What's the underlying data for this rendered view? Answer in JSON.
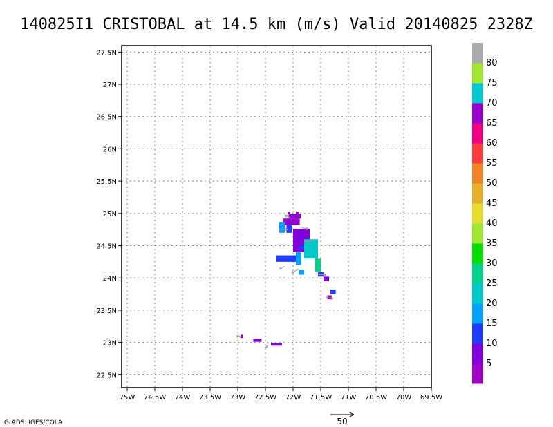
{
  "title": "140825I1 CRISTOBAL at 14.5 km (m/s) Valid 20140825 2328Z",
  "credit": "GrADS: IGES/COLA",
  "vector_scale": {
    "label": "50",
    "value": 50
  },
  "colors": {
    "frame": "#000000",
    "grid": "#888888",
    "vector": "#9a9a9a",
    "colorbar": [
      "#a000c8",
      "#8200dc",
      "#1e3cff",
      "#00a0ff",
      "#00c8c8",
      "#00d28c",
      "#00dc00",
      "#a0e632",
      "#e6dc32",
      "#e6af2d",
      "#f08228",
      "#fa3c3c",
      "#f00082",
      "#9600c8",
      "#00c8d2",
      "#a0e632",
      "#aaaaaa"
    ]
  },
  "chart_data": {
    "type": "heatmap",
    "title": "140825I1 CRISTOBAL at 14.5 km (m/s) Valid 20140825 2328Z",
    "xlabel": "",
    "ylabel": "",
    "xlim": [
      -75.1,
      -69.5
    ],
    "ylim": [
      22.3,
      27.6
    ],
    "grid": true,
    "x_ticks": [
      "75W",
      "74.5W",
      "74W",
      "73.5W",
      "73W",
      "72.5W",
      "72W",
      "71.5W",
      "71W",
      "70.5W",
      "70W",
      "69.5W"
    ],
    "y_ticks": [
      "22.5N",
      "23N",
      "23.5N",
      "24N",
      "24.5N",
      "25N",
      "25.5N",
      "26N",
      "26.5N",
      "27N",
      "27.5N"
    ],
    "colorbar": {
      "labels": [
        "5",
        "10",
        "15",
        "20",
        "25",
        "30",
        "35",
        "40",
        "45",
        "50",
        "55",
        "60",
        "65",
        "70",
        "75",
        "80"
      ],
      "placement": "right"
    },
    "cells": [
      {
        "lon": -72.1,
        "lat": 24.99,
        "w": 0.05,
        "h": 0.03,
        "color": "#a000c8"
      },
      {
        "lon": -71.95,
        "lat": 24.99,
        "w": 0.05,
        "h": 0.03,
        "color": "#a000c8"
      },
      {
        "lon": -72.08,
        "lat": 24.92,
        "w": 0.22,
        "h": 0.07,
        "color": "#9000d0"
      },
      {
        "lon": -72.18,
        "lat": 24.82,
        "w": 0.3,
        "h": 0.1,
        "color": "#9000d0"
      },
      {
        "lon": -72.25,
        "lat": 24.7,
        "w": 0.1,
        "h": 0.16,
        "color": "#00a0ff"
      },
      {
        "lon": -72.12,
        "lat": 24.7,
        "w": 0.1,
        "h": 0.12,
        "color": "#1e3cff"
      },
      {
        "lon": -72.0,
        "lat": 24.58,
        "w": 0.3,
        "h": 0.18,
        "color": "#8200dc"
      },
      {
        "lon": -72.0,
        "lat": 24.4,
        "w": 0.3,
        "h": 0.2,
        "color": "#8200dc"
      },
      {
        "lon": -71.9,
        "lat": 24.45,
        "w": 0.2,
        "h": 0.05,
        "color": "#1e3cff"
      },
      {
        "lon": -72.3,
        "lat": 24.25,
        "w": 0.35,
        "h": 0.1,
        "color": "#1e3cff"
      },
      {
        "lon": -71.95,
        "lat": 24.2,
        "w": 0.1,
        "h": 0.2,
        "color": "#00a0ff"
      },
      {
        "lon": -71.8,
        "lat": 24.3,
        "w": 0.25,
        "h": 0.3,
        "color": "#00c8c8"
      },
      {
        "lon": -71.6,
        "lat": 24.1,
        "w": 0.1,
        "h": 0.2,
        "color": "#00d28c"
      },
      {
        "lon": -71.9,
        "lat": 24.05,
        "w": 0.1,
        "h": 0.07,
        "color": "#00a0ff"
      },
      {
        "lon": -71.55,
        "lat": 24.02,
        "w": 0.1,
        "h": 0.07,
        "color": "#1e3cff"
      },
      {
        "lon": -71.45,
        "lat": 23.95,
        "w": 0.1,
        "h": 0.07,
        "color": "#8200dc"
      },
      {
        "lon": -71.33,
        "lat": 23.75,
        "w": 0.1,
        "h": 0.07,
        "color": "#1e3cff"
      },
      {
        "lon": -71.38,
        "lat": 23.67,
        "w": 0.08,
        "h": 0.06,
        "color": "#a000c8"
      },
      {
        "lon": -72.95,
        "lat": 23.07,
        "w": 0.05,
        "h": 0.05,
        "color": "#a000c8"
      },
      {
        "lon": -72.72,
        "lat": 23.01,
        "w": 0.15,
        "h": 0.05,
        "color": "#8200dc"
      },
      {
        "lon": -72.4,
        "lat": 22.95,
        "w": 0.2,
        "h": 0.04,
        "color": "#8200dc"
      }
    ],
    "vectors": [
      {
        "lon": -72.05,
        "lat": 24.93,
        "u": -4,
        "v": 2
      },
      {
        "lon": -71.85,
        "lat": 24.78,
        "u": 5,
        "v": -1
      },
      {
        "lon": -72.25,
        "lat": 24.75,
        "u": 6,
        "v": 0
      },
      {
        "lon": -71.8,
        "lat": 24.56,
        "u": 6,
        "v": 1
      },
      {
        "lon": -72.15,
        "lat": 24.18,
        "u": -4,
        "v": -2
      },
      {
        "lon": -71.9,
        "lat": 24.14,
        "u": -5,
        "v": -3
      },
      {
        "lon": -71.55,
        "lat": 24.05,
        "u": 6,
        "v": 0
      },
      {
        "lon": -71.4,
        "lat": 23.7,
        "u": 5,
        "v": -1
      },
      {
        "lon": -72.95,
        "lat": 23.08,
        "u": -3,
        "v": 1
      },
      {
        "lon": -72.45,
        "lat": 22.94,
        "u": -2,
        "v": -1
      }
    ]
  }
}
